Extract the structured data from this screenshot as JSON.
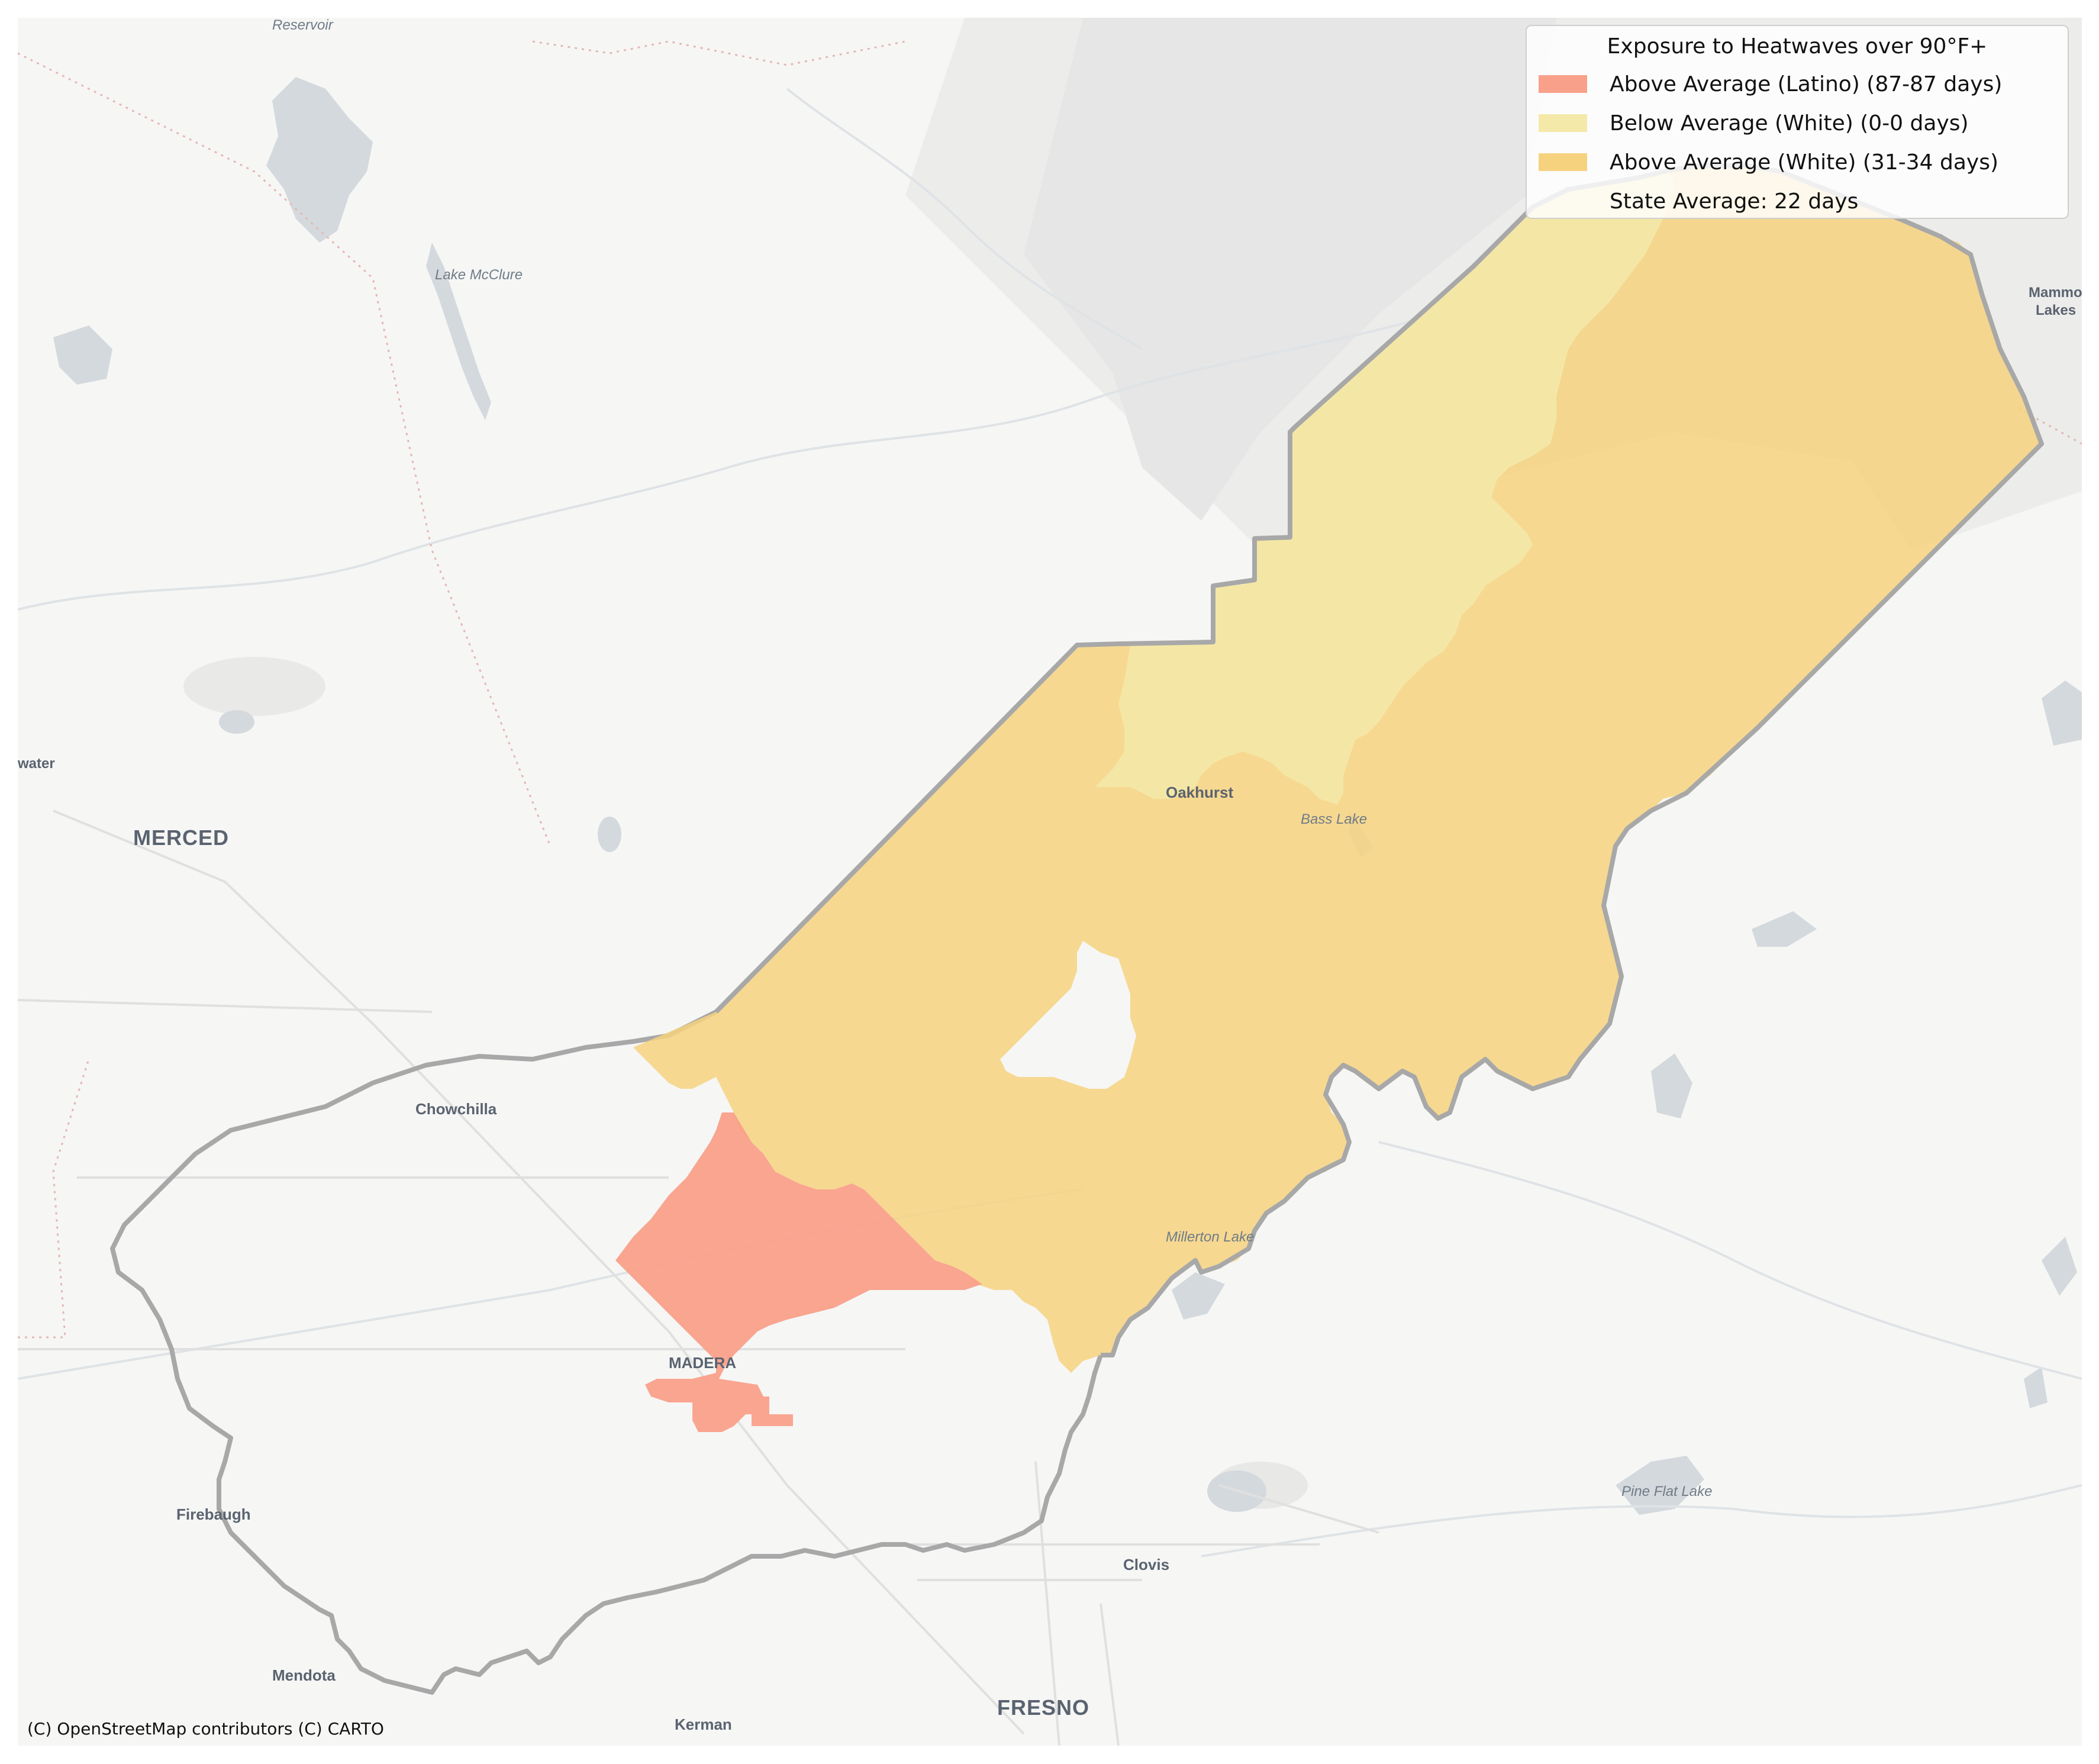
{
  "legend": {
    "title": "Exposure to Heatwaves over 90°F+",
    "items": [
      {
        "label": "Above Average (Latino) (87-87 days)",
        "color": "#f9a08a"
      },
      {
        "label": "Below Average (White) (0-0 days)",
        "color": "#f4e9a8"
      },
      {
        "label": "Above Average (White) (31-34 days)",
        "color": "#f6d27f"
      },
      {
        "label": "State Average: 22 days",
        "color": "transparent"
      }
    ]
  },
  "places": {
    "merced": "MERCED",
    "madera": "MADERA",
    "fresno": "FRESNO",
    "chowchilla": "Chowchilla",
    "oakhurst": "Oakhurst",
    "firebaugh": "Firebaugh",
    "mendota": "Mendota",
    "kerman": "Kerman",
    "clovis": "Clovis",
    "mammoth_1": "Mammo",
    "mammoth_2": "Lakes",
    "water_town": "water"
  },
  "water_labels": {
    "reservoir": "Reservoir",
    "lake_mcclure": "Lake McClure",
    "bass_lake": "Bass Lake",
    "millerton_lake": "Millerton Lake",
    "pine_flat_lake": "Pine Flat Lake"
  },
  "attribution": "(C) OpenStreetMap contributors (C) CARTO",
  "colors": {
    "latino_above": "#f9a08a",
    "white_below": "#f4e9a8",
    "white_above": "#f6d27f",
    "county_outline": "#a8a8a8",
    "basemap": "#f6f6f5",
    "water": "#d4d9dd"
  }
}
